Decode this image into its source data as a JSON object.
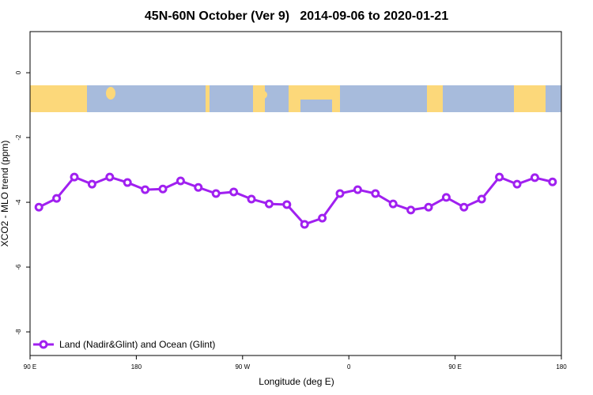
{
  "chart_data": {
    "type": "line",
    "title": "45N-60N October (Ver 9)   2014-09-06 to 2020-01-21",
    "x_label": "Longitude (deg E)",
    "y_label": "XCO2 - MLO trend (ppm)",
    "x": [
      97.5,
      112.5,
      127.5,
      142.5,
      157.5,
      172.5,
      187.5,
      202.5,
      217.5,
      232.5,
      247.5,
      262.5,
      277.5,
      292.5,
      307.5,
      322.5,
      337.5,
      352.5,
      367.5,
      382.5,
      397.5,
      412.5,
      427.5,
      442.5,
      457.5,
      472.5,
      487.5,
      502.5,
      517.5,
      532.5
    ],
    "series": [
      {
        "name": "Land (Nadir&Glint) and Ocean (Glint)",
        "color": "#a020f0",
        "values": [
          -4.15,
          -3.88,
          -3.22,
          -3.44,
          -3.22,
          -3.39,
          -3.61,
          -3.59,
          -3.34,
          -3.54,
          -3.73,
          -3.68,
          -3.9,
          -4.05,
          -4.07,
          -4.68,
          -4.49,
          -3.73,
          -3.61,
          -3.73,
          -4.05,
          -4.24,
          -4.15,
          -3.85,
          -4.15,
          -3.9,
          -3.22,
          -3.44,
          -3.24,
          -3.37
        ]
      }
    ],
    "xlim": [
      90,
      540
    ],
    "xticks": [
      {
        "value": 90,
        "label": "90 E"
      },
      {
        "value": 180,
        "label": "180"
      },
      {
        "value": 270,
        "label": "90 W"
      },
      {
        "value": 360,
        "label": "0"
      },
      {
        "value": 450,
        "label": "90 E"
      },
      {
        "value": 540,
        "label": "180"
      }
    ],
    "ylim": [
      -8.73,
      1.27
    ],
    "yticks": [
      0,
      -2,
      -4,
      -6,
      -8
    ],
    "legend": "bottom-left"
  }
}
